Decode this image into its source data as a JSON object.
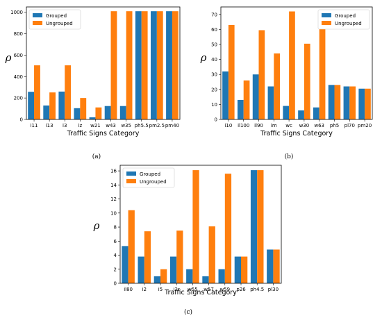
{
  "colors": {
    "grouped": "#1f77b4",
    "ungrouped": "#ff7f0e"
  },
  "chart_data": [
    {
      "type": "bar",
      "categories": [
        "i11",
        "i13",
        "i3",
        "iz",
        "w21",
        "w43",
        "w35",
        "ph5.5",
        "pm2.5",
        "pm40"
      ],
      "series": [
        {
          "name": "Grouped",
          "values": [
            258,
            130,
            260,
            105,
            20,
            125,
            125,
            1010,
            1010,
            1010
          ]
        },
        {
          "name": "Ungrouped",
          "values": [
            505,
            252,
            505,
            200,
            112,
            1010,
            1010,
            1010,
            1010,
            1010
          ]
        }
      ],
      "xlabel": "Traffic Signs Category",
      "ylabel": "ρ",
      "ylim": [
        0,
        1050
      ],
      "yticks": [
        0,
        200,
        400,
        600,
        800,
        1000
      ],
      "caption": "(a)",
      "legend": "top-left",
      "grid": false
    },
    {
      "type": "bar",
      "categories": [
        "i10",
        "il100",
        "il90",
        "im",
        "wc",
        "w30",
        "w63",
        "ph5",
        "pl70",
        "pm20"
      ],
      "series": [
        {
          "name": "Grouped",
          "values": [
            32,
            13,
            30,
            22,
            9,
            6,
            8,
            23,
            22,
            20.5
          ]
        },
        {
          "name": "Ungrouped",
          "values": [
            63,
            26,
            59.5,
            44,
            72,
            50.5,
            63,
            23,
            22,
            20.5
          ]
        }
      ],
      "xlabel": "Traffic Signs Category",
      "ylabel": "ρ",
      "ylim": [
        0,
        75
      ],
      "yticks": [
        0,
        10,
        20,
        30,
        40,
        50,
        60,
        70
      ],
      "caption": "(b)",
      "legend": "top-right",
      "grid": false
    },
    {
      "type": "bar",
      "categories": [
        "il80",
        "i2",
        "i5",
        "i2r",
        "w55",
        "w57",
        "w59",
        "p26",
        "ph4.5",
        "pl30"
      ],
      "series": [
        {
          "name": "Grouped",
          "values": [
            5.3,
            3.8,
            1.0,
            3.8,
            2.0,
            1.0,
            2.0,
            3.8,
            16.1,
            4.8
          ]
        },
        {
          "name": "Ungrouped",
          "values": [
            10.4,
            7.4,
            2.0,
            7.5,
            16.1,
            8.1,
            15.6,
            3.8,
            16.1,
            4.8
          ]
        }
      ],
      "xlabel": "Traffic Signs Category",
      "ylabel": "ρ",
      "ylim": [
        0,
        16.8
      ],
      "yticks": [
        0,
        2,
        4,
        6,
        8,
        10,
        12,
        14,
        16
      ],
      "caption": "(c)",
      "legend": "top-left",
      "grid": false
    }
  ]
}
